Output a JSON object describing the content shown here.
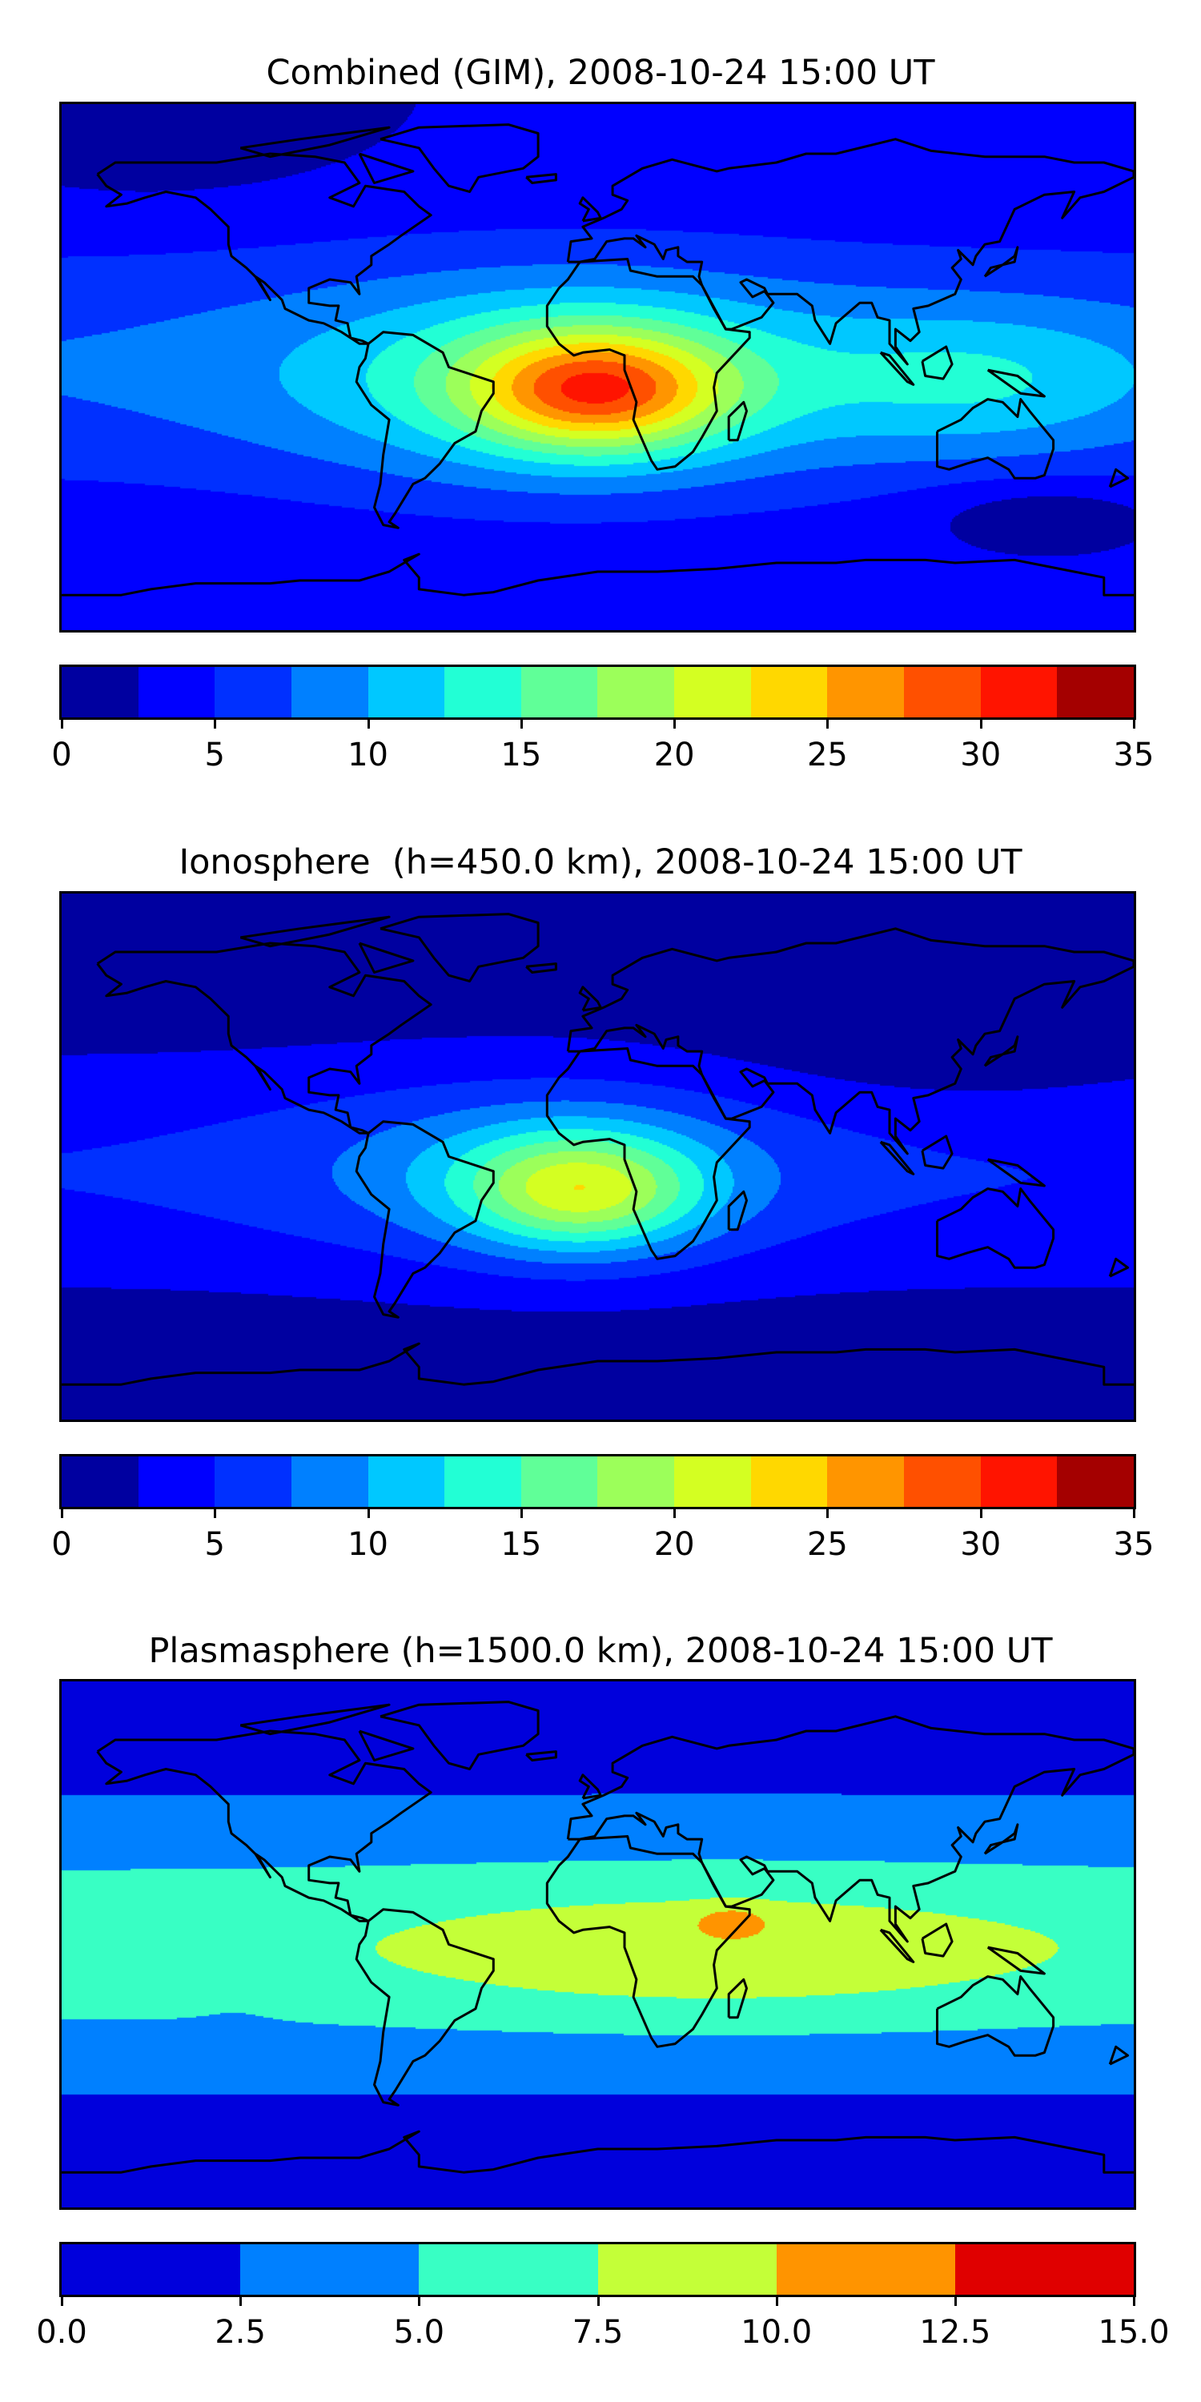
{
  "chart_data": [
    {
      "type": "heatmap",
      "subtype": "filled-contour map (plate carree, global, coastlines)",
      "title": "Combined (GIM), 2008-10-24 15:00 UT",
      "quantity_range": [
        0,
        35
      ],
      "levels": [
        0,
        2.5,
        5,
        7.5,
        10,
        12.5,
        15,
        17.5,
        20,
        22.5,
        25,
        27.5,
        30,
        32.5,
        35
      ],
      "colors": [
        "#0000a0",
        "#0000ff",
        "#0030ff",
        "#0080ff",
        "#00c8ff",
        "#22ffd5",
        "#60ff98",
        "#9cff5a",
        "#d4ff22",
        "#ffd800",
        "#ff9500",
        "#ff5000",
        "#ff1400",
        "#a40000"
      ],
      "colorbar_ticks": [
        "0",
        "5",
        "10",
        "15",
        "20",
        "25",
        "30",
        "35"
      ],
      "colorbar_tick_values": [
        0,
        5,
        10,
        15,
        20,
        25,
        30,
        35
      ],
      "max_region": "equatorial South Atlantic / central Africa, approx 30-32.5"
    },
    {
      "type": "heatmap",
      "subtype": "filled-contour map (plate carree, global, coastlines)",
      "title": "Ionosphere  (h=450.0 km), 2008-10-24 15:00 UT",
      "quantity_range": [
        0,
        35
      ],
      "levels": [
        0,
        2.5,
        5,
        7.5,
        10,
        12.5,
        15,
        17.5,
        20,
        22.5,
        25,
        27.5,
        30,
        32.5,
        35
      ],
      "colors": [
        "#0000a0",
        "#0000ff",
        "#0030ff",
        "#0080ff",
        "#00c8ff",
        "#22ffd5",
        "#60ff98",
        "#9cff5a",
        "#d4ff22",
        "#ffd800",
        "#ff9500",
        "#ff5000",
        "#ff1400",
        "#a40000"
      ],
      "colorbar_ticks": [
        "0",
        "5",
        "10",
        "15",
        "20",
        "25",
        "30",
        "35"
      ],
      "colorbar_tick_values": [
        0,
        5,
        10,
        15,
        20,
        25,
        30,
        35
      ],
      "max_region": "equatorial South Atlantic, approx 22.5-25"
    },
    {
      "type": "heatmap",
      "subtype": "filled-contour map (plate carree, global, coastlines)",
      "title": "Plasmasphere (h=1500.0 km), 2008-10-24 15:00 UT",
      "quantity_range": [
        0,
        15
      ],
      "levels": [
        0,
        2.5,
        5,
        7.5,
        10,
        12.5,
        15
      ],
      "colors": [
        "#0000dc",
        "#0080ff",
        "#38ffc4",
        "#c4ff38",
        "#ff9400",
        "#e00000"
      ],
      "colorbar_ticks": [
        "0.0",
        "2.5",
        "5.0",
        "7.5",
        "10.0",
        "12.5",
        "15.0"
      ],
      "colorbar_tick_values": [
        0,
        2.5,
        5,
        7.5,
        10,
        12.5,
        15
      ],
      "max_region": "Horn of Africa, approx 10-12.5"
    }
  ]
}
